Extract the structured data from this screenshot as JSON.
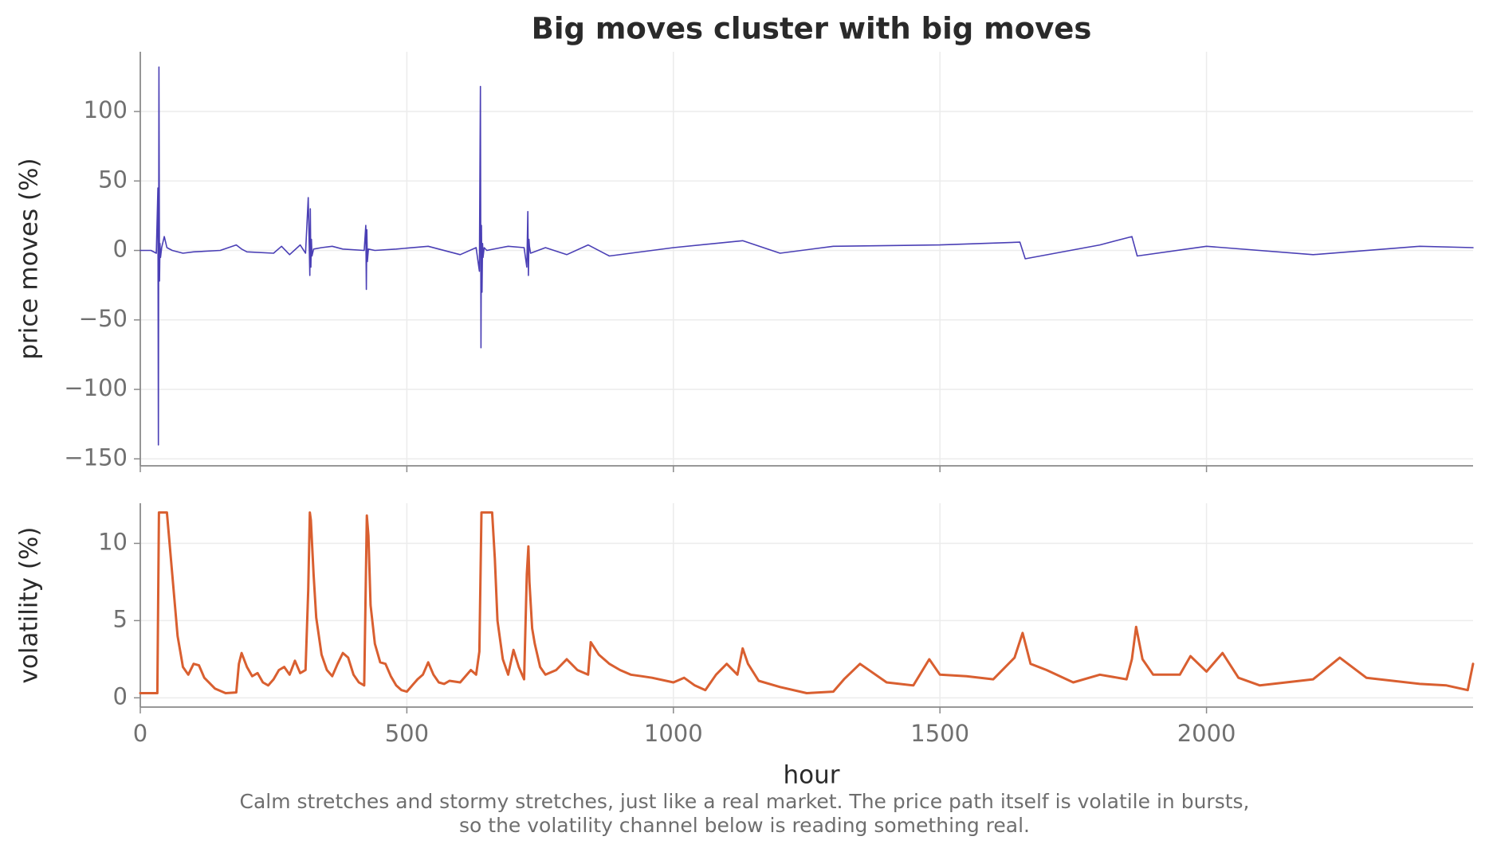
{
  "chart_data": {
    "title": "Big moves cluster with big moves",
    "caption": "Calm stretches and stormy stretches, just like a real market. The price path itself is volatile in bursts,\nso the volatility channel below is reading something real.",
    "xlabel": "hour",
    "x_range": [
      0,
      2500
    ],
    "x_ticks": [
      0,
      500,
      1000,
      1500,
      2000
    ],
    "x_tick_labels": [
      "0",
      "500",
      "1000",
      "1500",
      "2000"
    ],
    "grid": true,
    "panels": [
      {
        "type": "line",
        "ylabel": "price moves (%)",
        "ylim": [
          -155,
          143
        ],
        "y_ticks": [
          100,
          50,
          0,
          -50,
          -100,
          -150
        ],
        "y_tick_labels": [
          "100",
          "50",
          "0",
          "−50",
          "−100",
          "−150"
        ],
        "color": "#4a3fb5",
        "series": [
          {
            "x": [
              0,
              20,
              30,
              33,
              34,
              35,
              36,
              37,
              38,
              40,
              45,
              50,
              60,
              80,
              100,
              150,
              180,
              190,
              200,
              250,
              265,
              280,
              300,
              310,
              315,
              318,
              319,
              320,
              321,
              322,
              325,
              340,
              360,
              380,
              420,
              423,
              424,
              425,
              426,
              428,
              440,
              480,
              540,
              600,
              630,
              636,
              638,
              639,
              640,
              641,
              642,
              643,
              645,
              650,
              690,
              720,
              725,
              727,
              728,
              729,
              730,
              732,
              760,
              800,
              840,
              880,
              1000,
              1130,
              1200,
              1300,
              1500,
              1650,
              1660,
              1800,
              1860,
              1870,
              2000,
              2200,
              2400,
              2500
            ],
            "y": [
              0,
              0,
              -2,
              45,
              -140,
              132,
              -22,
              5,
              -5,
              2,
              10,
              2,
              0,
              -2,
              -1,
              0,
              4,
              1,
              -1,
              -2,
              3,
              -3,
              4,
              -2,
              38,
              -18,
              30,
              -12,
              8,
              -4,
              1,
              2,
              3,
              1,
              0,
              18,
              -28,
              15,
              -8,
              1,
              0,
              1,
              3,
              -3,
              2,
              -15,
              118,
              -70,
              18,
              -30,
              5,
              -5,
              2,
              0,
              3,
              2,
              -12,
              28,
              -18,
              8,
              3,
              -2,
              2,
              -3,
              4,
              -4,
              2,
              7,
              -2,
              3,
              4,
              6,
              -6,
              4,
              10,
              -4,
              3,
              -3,
              3,
              2
            ]
          }
        ]
      },
      {
        "type": "line",
        "ylabel": "volatility (%)",
        "ylim": [
          -0.6,
          12.6
        ],
        "y_ticks": [
          0,
          5,
          10
        ],
        "y_tick_labels": [
          "0",
          "5",
          "10"
        ],
        "color": "#d95f30",
        "series": [
          {
            "x": [
              0,
              20,
              32,
              35,
              50,
              60,
              70,
              80,
              90,
              100,
              110,
              120,
              140,
              160,
              180,
              185,
              190,
              200,
              210,
              220,
              230,
              240,
              250,
              260,
              270,
              280,
              290,
              295,
              300,
              310,
              315,
              318,
              320,
              325,
              330,
              340,
              350,
              360,
              370,
              380,
              390,
              400,
              410,
              420,
              425,
              428,
              432,
              440,
              450,
              460,
              470,
              480,
              490,
              500,
              510,
              520,
              530,
              540,
              550,
              560,
              570,
              580,
              600,
              620,
              630,
              636,
              640,
              660,
              665,
              670,
              680,
              690,
              700,
              710,
              720,
              725,
              728,
              730,
              735,
              740,
              750,
              760,
              780,
              800,
              820,
              840,
              845,
              860,
              880,
              900,
              920,
              940,
              960,
              1000,
              1020,
              1040,
              1060,
              1080,
              1100,
              1120,
              1130,
              1140,
              1160,
              1200,
              1250,
              1300,
              1320,
              1350,
              1400,
              1450,
              1480,
              1500,
              1550,
              1600,
              1640,
              1655,
              1670,
              1700,
              1750,
              1800,
              1850,
              1860,
              1868,
              1880,
              1900,
              1950,
              1970,
              2000,
              2030,
              2060,
              2100,
              2200,
              2250,
              2300,
              2400,
              2450,
              2490,
              2500
            ],
            "y": [
              0.3,
              0.3,
              0.3,
              12,
              12,
              8,
              4,
              2,
              1.5,
              2.2,
              2.1,
              1.3,
              0.6,
              0.3,
              0.35,
              2.2,
              2.9,
              2.0,
              1.4,
              1.6,
              1.0,
              0.8,
              1.2,
              1.8,
              2.0,
              1.5,
              2.4,
              2.0,
              1.6,
              1.8,
              7.0,
              12,
              11.5,
              8.0,
              5.2,
              2.8,
              1.8,
              1.4,
              2.2,
              2.9,
              2.6,
              1.5,
              1.0,
              0.8,
              11.8,
              10.5,
              6.0,
              3.5,
              2.3,
              2.2,
              1.4,
              0.8,
              0.5,
              0.4,
              0.8,
              1.2,
              1.5,
              2.3,
              1.5,
              1.0,
              0.9,
              1.1,
              1.0,
              1.8,
              1.5,
              3.0,
              12,
              12,
              9.0,
              5.0,
              2.5,
              1.5,
              3.1,
              2.0,
              1.2,
              8.0,
              9.8,
              7.5,
              4.5,
              3.5,
              2.0,
              1.5,
              1.8,
              2.5,
              1.8,
              1.5,
              3.6,
              2.8,
              2.2,
              1.8,
              1.5,
              1.4,
              1.3,
              1.0,
              1.3,
              0.8,
              0.5,
              1.5,
              2.2,
              1.5,
              3.2,
              2.2,
              1.1,
              0.7,
              0.3,
              0.4,
              1.2,
              2.2,
              1.0,
              0.8,
              2.5,
              1.5,
              1.4,
              1.2,
              2.6,
              4.2,
              2.2,
              1.8,
              1.0,
              1.5,
              1.2,
              2.5,
              4.6,
              2.5,
              1.5,
              1.5,
              2.7,
              1.7,
              2.9,
              1.3,
              0.8,
              1.2,
              2.6,
              1.3,
              0.9,
              0.8,
              0.5,
              2.2
            ]
          }
        ]
      }
    ]
  }
}
